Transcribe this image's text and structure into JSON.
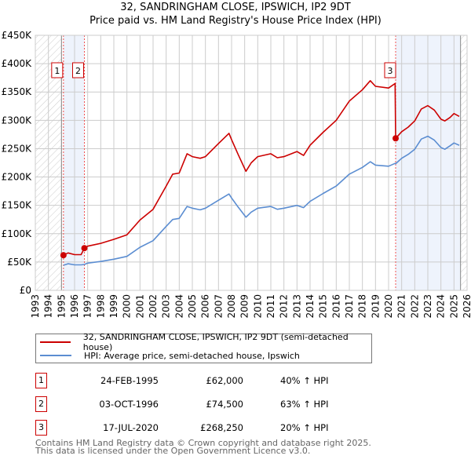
{
  "title_line1": "32, SANDRINGHAM CLOSE, IPSWICH, IP2 9DT",
  "title_line2": "Price paid vs. HM Land Registry's House Price Index (HPI)",
  "colors": {
    "property": "#cc0000",
    "hpi": "#5b8dd1",
    "grid": "#cccccc",
    "shade": "#eef3fc"
  },
  "chart_data": {
    "type": "line",
    "title": "32, SANDRINGHAM CLOSE, IPSWICH, IP2 9DT — Price paid vs. HM Land Registry's House Price Index (HPI)",
    "xlabel": "",
    "ylabel": "",
    "xlim": [
      1993,
      2026
    ],
    "ylim": [
      0,
      450000
    ],
    "x_ticks": [
      "1993",
      "1994",
      "1995",
      "1996",
      "1997",
      "1998",
      "1999",
      "2000",
      "2001",
      "2002",
      "2003",
      "2004",
      "2005",
      "2006",
      "2007",
      "2008",
      "2009",
      "2010",
      "2011",
      "2012",
      "2013",
      "2014",
      "2015",
      "2016",
      "2017",
      "2018",
      "2019",
      "2020",
      "2021",
      "2022",
      "2023",
      "2024",
      "2025",
      "2026"
    ],
    "y_ticks": [
      {
        "value": 0,
        "label": "£0"
      },
      {
        "value": 50000,
        "label": "£50K"
      },
      {
        "value": 100000,
        "label": "£100K"
      },
      {
        "value": 150000,
        "label": "£150K"
      },
      {
        "value": 200000,
        "label": "£200K"
      },
      {
        "value": 250000,
        "label": "£250K"
      },
      {
        "value": 300000,
        "label": "£300K"
      },
      {
        "value": 350000,
        "label": "£350K"
      },
      {
        "value": 400000,
        "label": "£400K"
      },
      {
        "value": 450000,
        "label": "£450K"
      }
    ],
    "grid": true,
    "data_range": [
      1995.0,
      2025.5
    ],
    "series": [
      {
        "name": "32, SANDRINGHAM CLOSE, IPSWICH, IP2 9DT (semi-detached house)",
        "color": "#cc0000",
        "x": [
          1995.15,
          1995.5,
          1996,
          1996.5,
          1996.75,
          1997,
          1998,
          1999,
          2000,
          2001,
          2002,
          2003,
          2003.5,
          2004,
          2004.6,
          2005,
          2005.6,
          2006,
          2007,
          2007.8,
          2008,
          2008.5,
          2009.1,
          2009.5,
          2010,
          2011,
          2011.5,
          2012,
          2013,
          2013.5,
          2014,
          2015,
          2016,
          2017,
          2018,
          2018.6,
          2019,
          2020,
          2020.5,
          2020.54,
          2021,
          2021.5,
          2022,
          2022.5,
          2023,
          2023.5,
          2024,
          2024.3,
          2024.7,
          2025,
          2025.4
        ],
        "y": [
          62000,
          66000,
          63000,
          63000,
          74500,
          78000,
          83000,
          90000,
          98000,
          124000,
          143000,
          184000,
          205000,
          207000,
          241000,
          236000,
          233000,
          236000,
          259000,
          277000,
          266000,
          240000,
          210000,
          225000,
          236000,
          241000,
          234000,
          236000,
          245000,
          238000,
          256000,
          279000,
          300000,
          334000,
          354000,
          370000,
          360000,
          357000,
          365000,
          268250,
          280000,
          288000,
          299000,
          320000,
          326000,
          318000,
          302000,
          299000,
          305000,
          312000,
          307000
        ]
      },
      {
        "name": "HPI: Average price, semi-detached house, Ipswich",
        "color": "#5b8dd1",
        "x": [
          1995.15,
          1995.5,
          1996,
          1996.5,
          1996.75,
          1997,
          1998,
          1999,
          2000,
          2001,
          2002,
          2003,
          2003.5,
          2004,
          2004.6,
          2005,
          2005.6,
          2006,
          2007,
          2007.8,
          2008,
          2008.5,
          2009.1,
          2009.5,
          2010,
          2011,
          2011.5,
          2012,
          2013,
          2013.5,
          2014,
          2015,
          2016,
          2017,
          2018,
          2018.6,
          2019,
          2020,
          2020.5,
          2020.54,
          2021,
          2021.5,
          2022,
          2022.5,
          2023,
          2023.5,
          2024,
          2024.3,
          2024.7,
          2025,
          2025.4
        ],
        "y": [
          44300,
          47000,
          45000,
          45000,
          45700,
          48000,
          51000,
          55000,
          60000,
          76000,
          87600,
          113000,
          125000,
          127000,
          148000,
          145000,
          142000,
          145000,
          159000,
          170000,
          163000,
          147000,
          129000,
          138000,
          145000,
          148000,
          143000,
          145000,
          150000,
          146000,
          157000,
          171000,
          184000,
          205000,
          217000,
          227000,
          221000,
          219000,
          224000,
          223500,
          233000,
          240000,
          249000,
          267000,
          272000,
          265000,
          252000,
          249000,
          255000,
          260000,
          256000
        ]
      }
    ],
    "sales": [
      {
        "num": "1",
        "x": 1995.15,
        "y": 62000
      },
      {
        "num": "2",
        "x": 1996.75,
        "y": 74500
      },
      {
        "num": "3",
        "x": 2020.54,
        "y": 268250
      }
    ],
    "legend_placement": "below"
  },
  "legend": {
    "property": "32, SANDRINGHAM CLOSE, IPSWICH, IP2 9DT (semi-detached house)",
    "hpi": "HPI: Average price, semi-detached house, Ipswich"
  },
  "sales_table": [
    {
      "num": "1",
      "date": "24-FEB-1995",
      "price": "£62,000",
      "hpi": "40% ↑ HPI"
    },
    {
      "num": "2",
      "date": "03-OCT-1996",
      "price": "£74,500",
      "hpi": "63% ↑ HPI"
    },
    {
      "num": "3",
      "date": "17-JUL-2020",
      "price": "£268,250",
      "hpi": "20% ↑ HPI"
    }
  ],
  "footer_line1": "Contains HM Land Registry data © Crown copyright and database right 2025.",
  "footer_line2": "This data is licensed under the Open Government Licence v3.0."
}
